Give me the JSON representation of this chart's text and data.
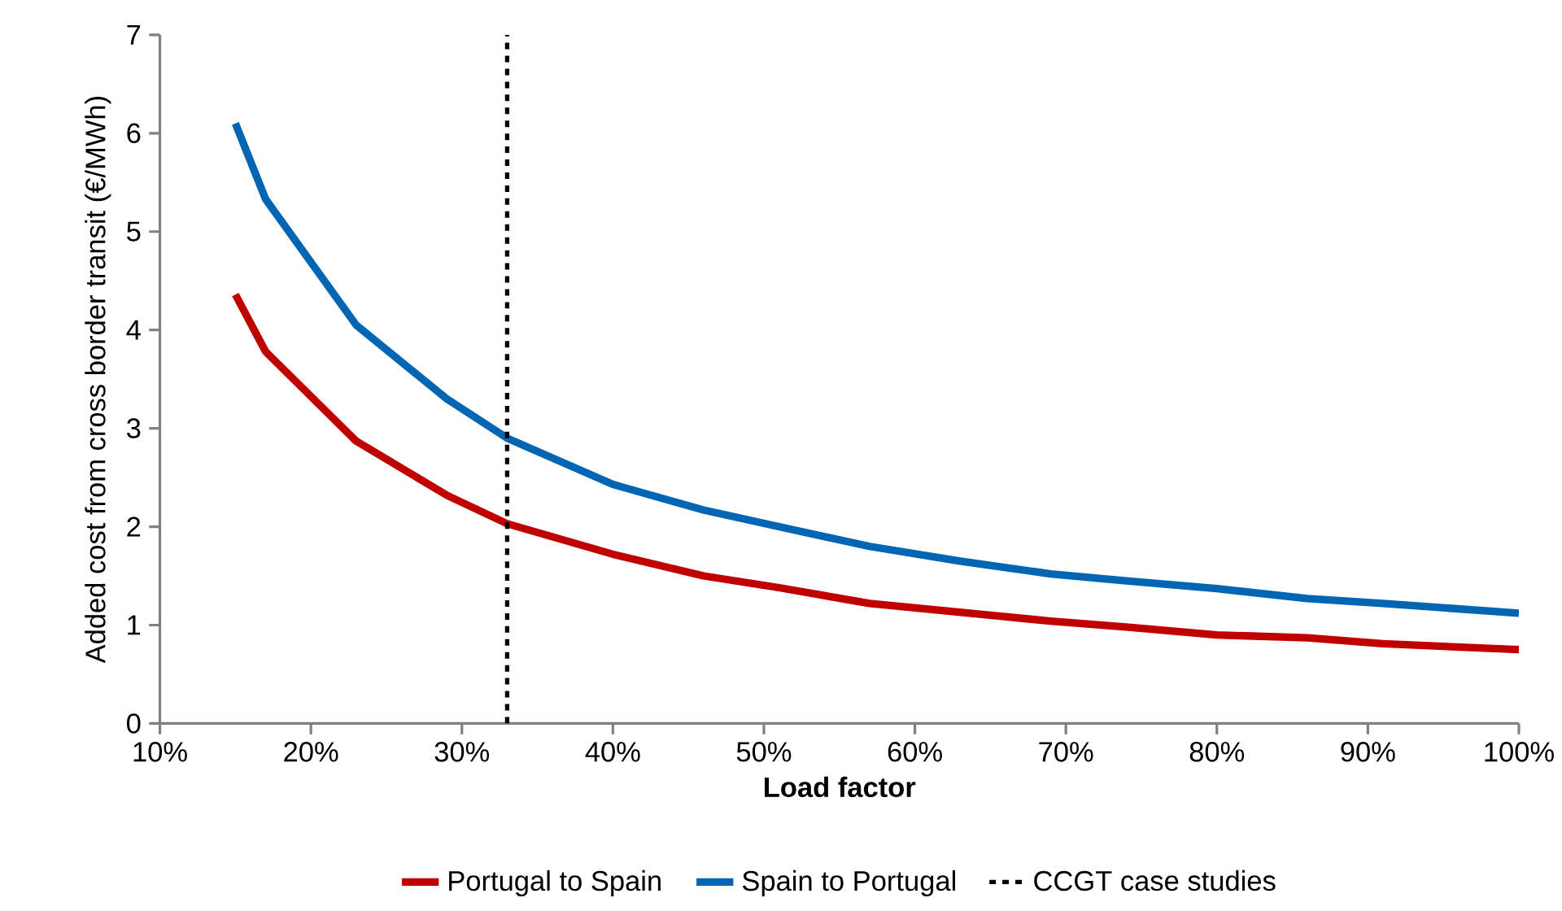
{
  "chart_data": {
    "type": "line",
    "xlabel": "Load factor",
    "ylabel": "Added cost from cross border transit (€/MWh)",
    "x": [
      15,
      17,
      23,
      29,
      33,
      40,
      46,
      51,
      57,
      63,
      69,
      74,
      80,
      86,
      91,
      100
    ],
    "series": [
      {
        "name": "Portugal to Spain",
        "color": "#c00000",
        "values": [
          4.36,
          3.78,
          2.87,
          2.32,
          2.03,
          1.72,
          1.5,
          1.38,
          1.22,
          1.13,
          1.04,
          0.98,
          0.9,
          0.87,
          0.81,
          0.75
        ]
      },
      {
        "name": "Spain to Portugal",
        "color": "#0066b3",
        "values": [
          6.1,
          5.33,
          4.05,
          3.3,
          2.9,
          2.43,
          2.17,
          2.0,
          1.8,
          1.65,
          1.52,
          1.45,
          1.37,
          1.27,
          1.22,
          1.12
        ]
      }
    ],
    "ref_lines": [
      {
        "axis": "x",
        "value": 33,
        "label": "CCGT case studies",
        "color": "#000000",
        "line_style": "dashed"
      }
    ],
    "xlim": [
      10,
      100
    ],
    "ylim": [
      0,
      7
    ],
    "xticks": [
      {
        "value": 10,
        "label": "10%"
      },
      {
        "value": 20,
        "label": "20%"
      },
      {
        "value": 30,
        "label": "30%"
      },
      {
        "value": 40,
        "label": "40%"
      },
      {
        "value": 50,
        "label": "50%"
      },
      {
        "value": 60,
        "label": "60%"
      },
      {
        "value": 70,
        "label": "70%"
      },
      {
        "value": 80,
        "label": "80%"
      },
      {
        "value": 90,
        "label": "90%"
      },
      {
        "value": 100,
        "label": "100%"
      }
    ],
    "yticks": [
      0,
      1,
      2,
      3,
      4,
      5,
      6,
      7
    ],
    "legend": "bottom",
    "grid": false,
    "marker": "none",
    "line_style": "solid"
  }
}
